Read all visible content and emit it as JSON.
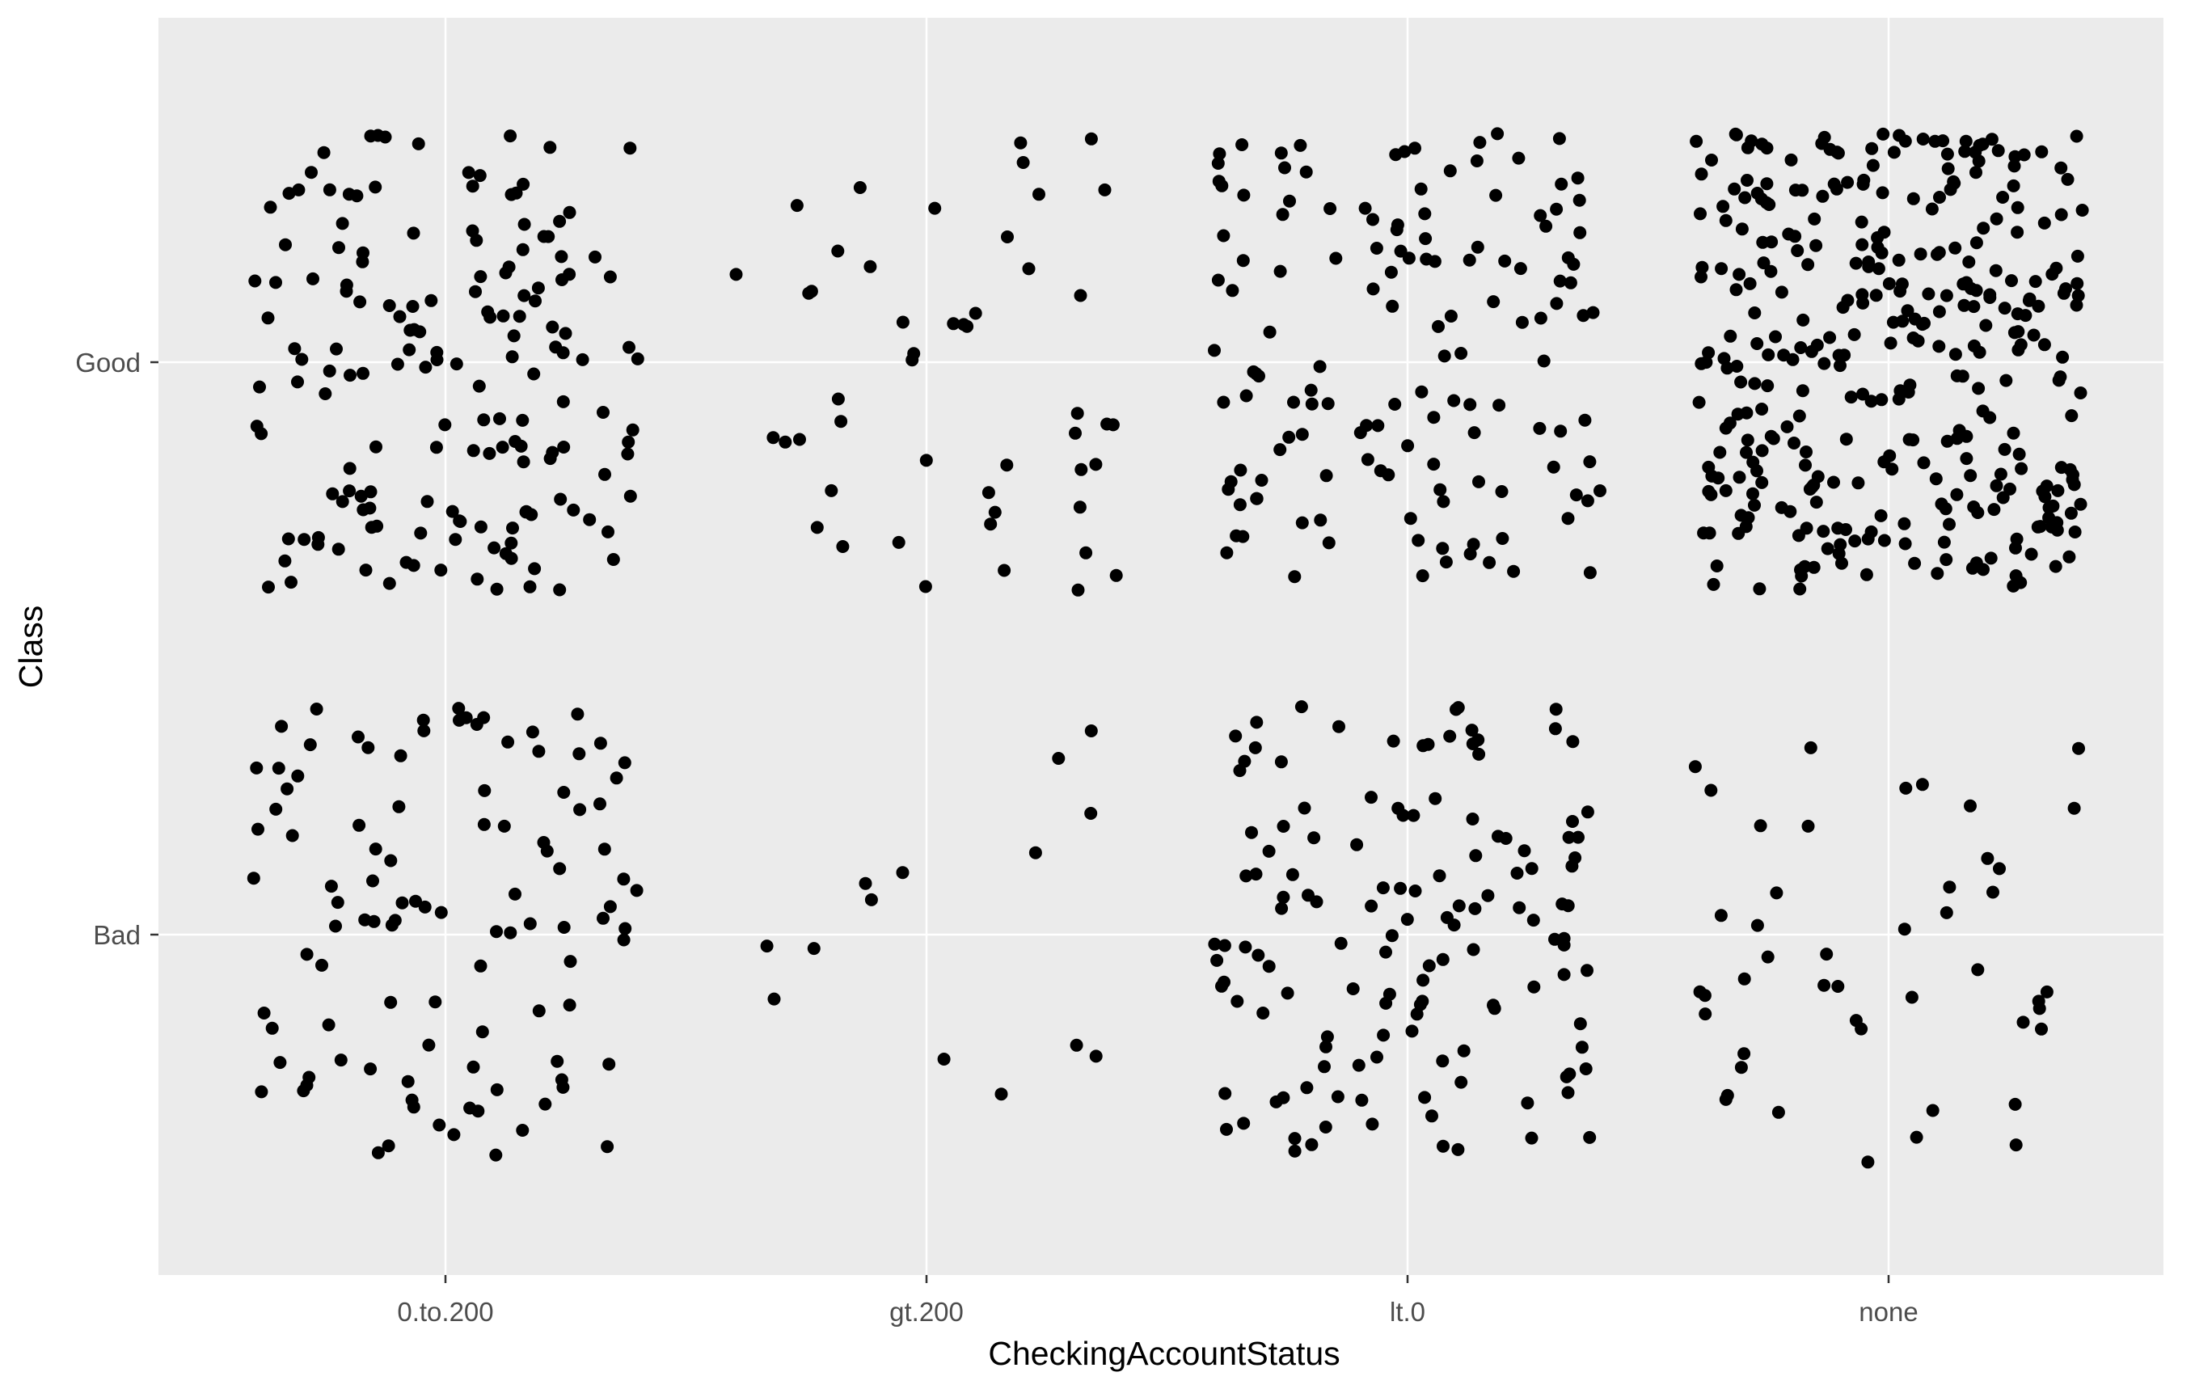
{
  "chart_data": {
    "type": "scatter",
    "jitter": true,
    "xlabel": "CheckingAccountStatus",
    "ylabel": "Class",
    "x_categories": [
      "0.to.200",
      "gt.200",
      "lt.0",
      "none"
    ],
    "y_categories": [
      "Bad",
      "Good"
    ],
    "grid": true,
    "colors": {
      "panel": "#ebebeb",
      "grid": "#ffffff",
      "point": "#000000",
      "tick_text": "#4d4d4d",
      "title_text": "#000000"
    },
    "counts": [
      {
        "x": "0.to.200",
        "y": "Good",
        "n": 164
      },
      {
        "x": "0.to.200",
        "y": "Bad",
        "n": 105
      },
      {
        "x": "gt.200",
        "y": "Good",
        "n": 49
      },
      {
        "x": "gt.200",
        "y": "Bad",
        "n": 14
      },
      {
        "x": "lt.0",
        "y": "Good",
        "n": 139
      },
      {
        "x": "lt.0",
        "y": "Bad",
        "n": 135
      },
      {
        "x": "none",
        "y": "Good",
        "n": 348
      },
      {
        "x": "none",
        "y": "Bad",
        "n": 46
      }
    ]
  }
}
